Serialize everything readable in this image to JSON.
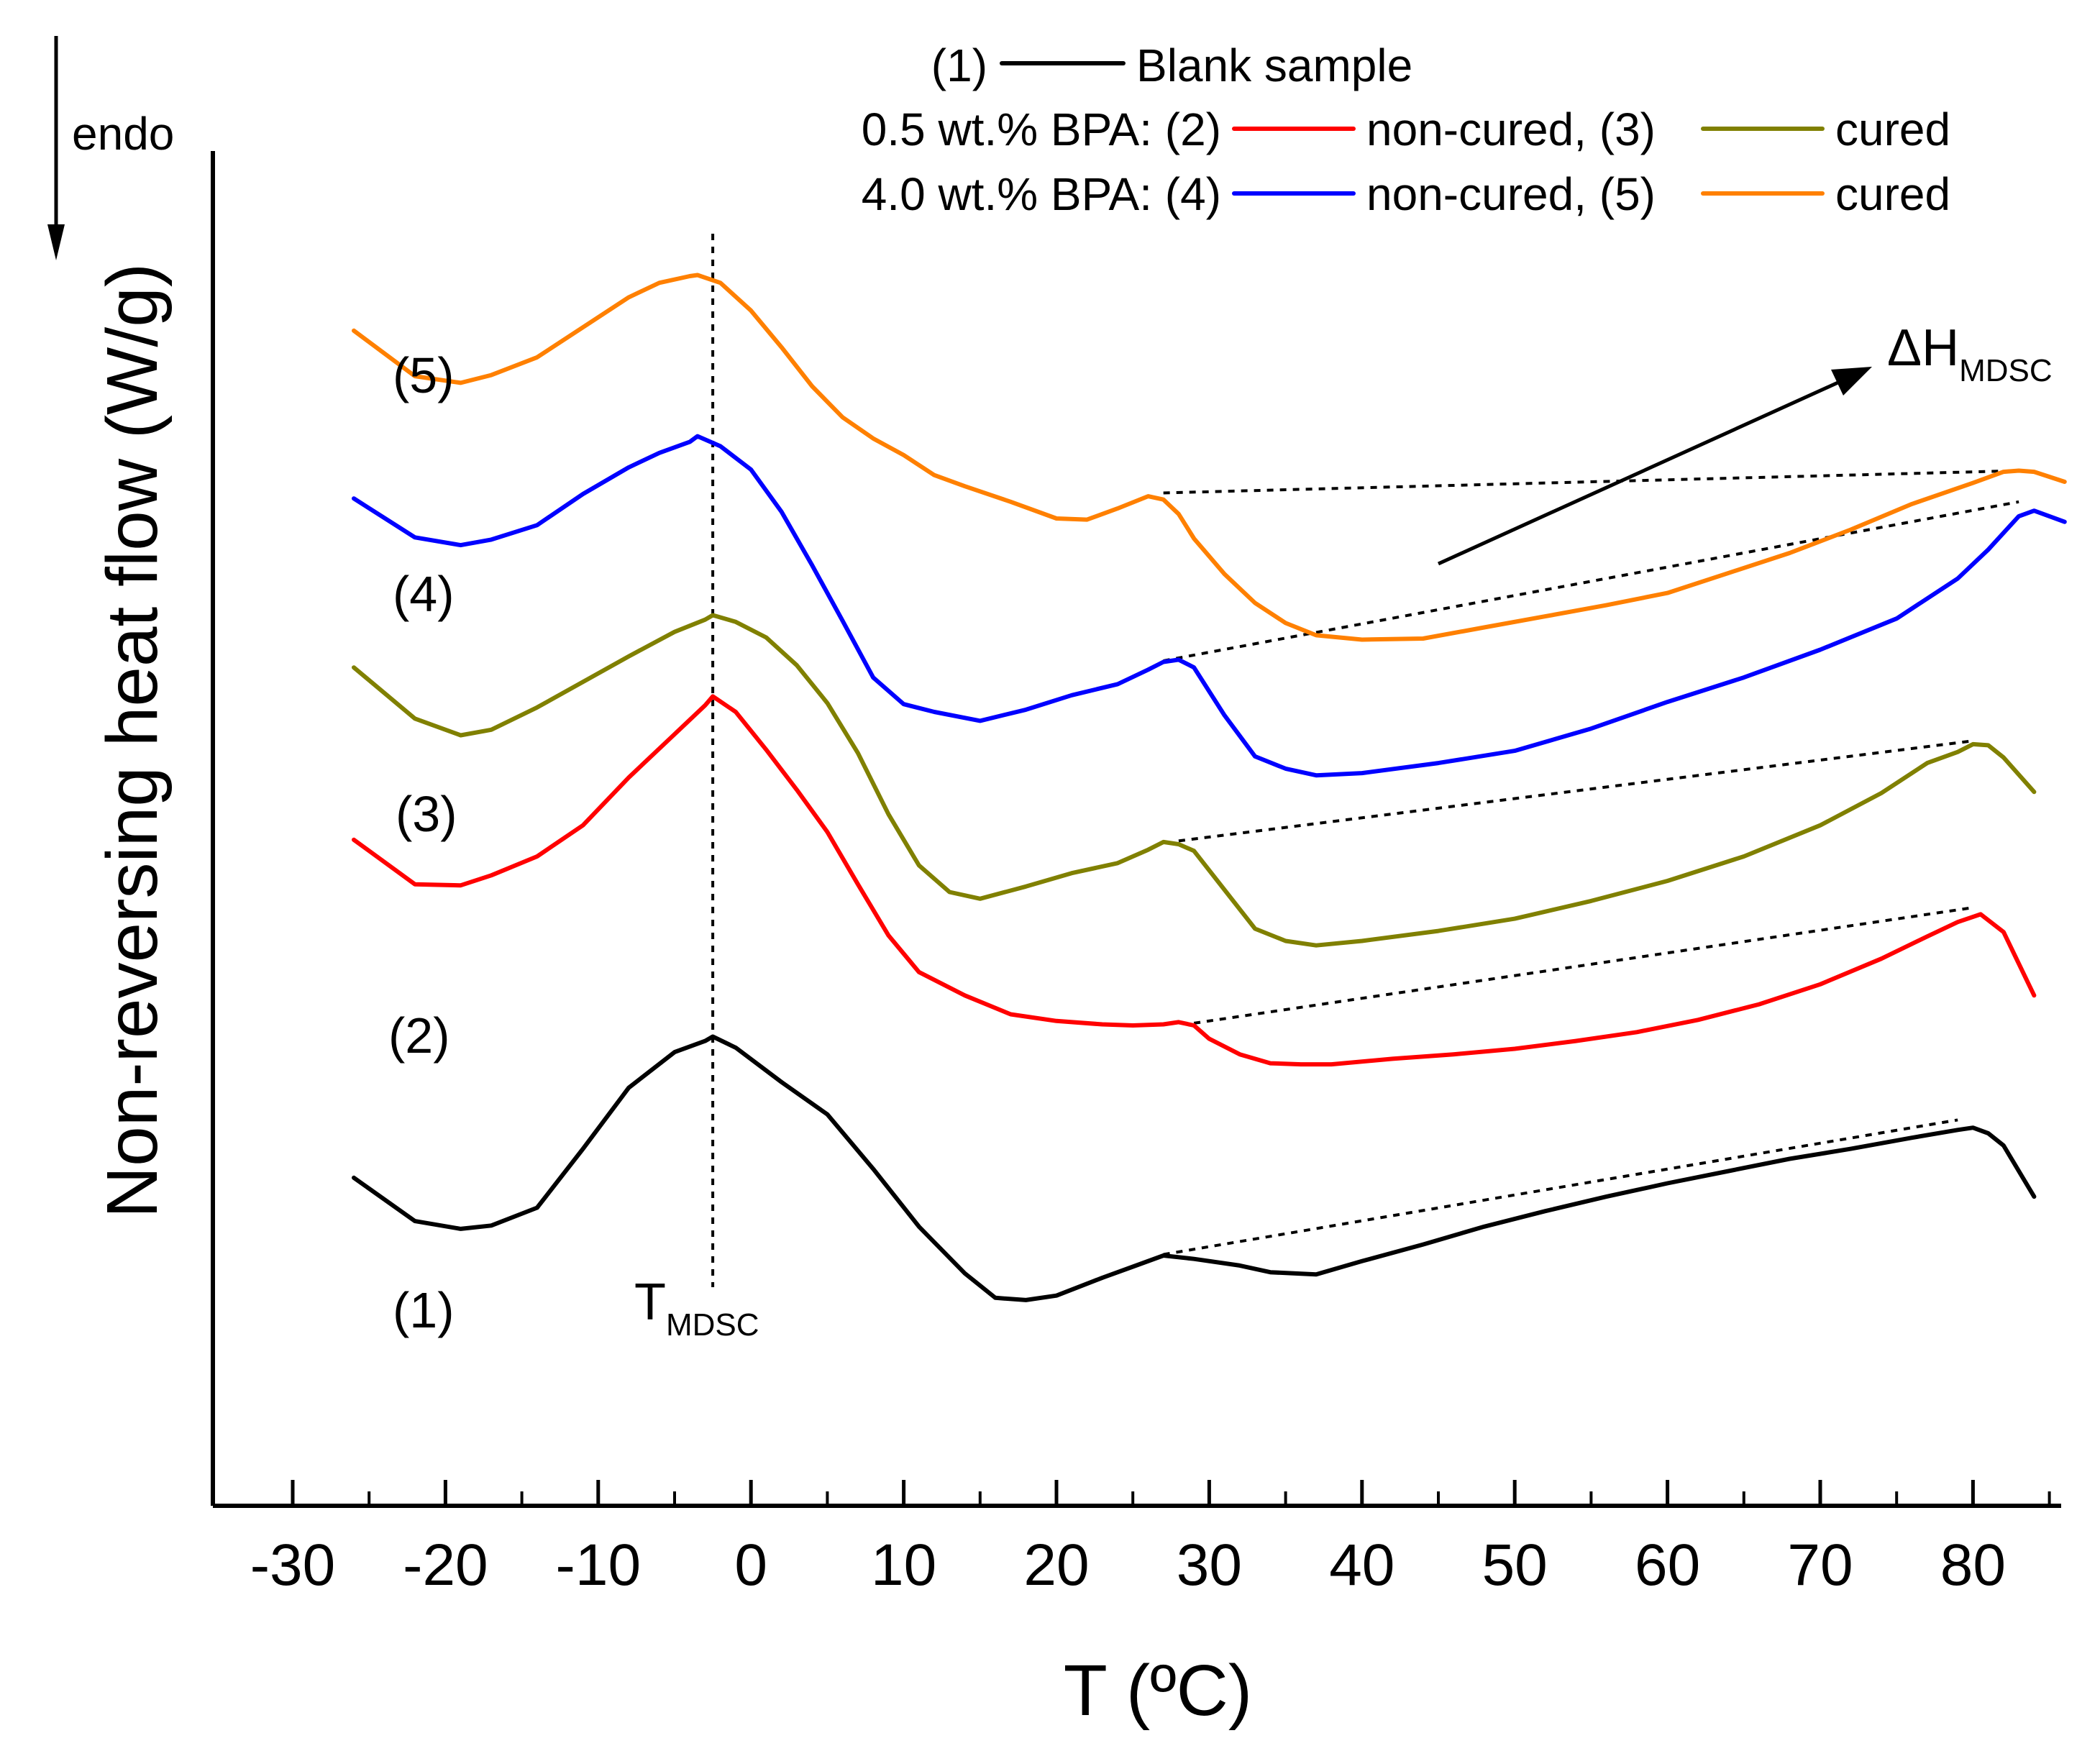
{
  "chart_data": {
    "type": "line",
    "xlabel": "T (ºC)",
    "ylabel": "Non-reversing heat flow (W/g)",
    "xlim": [
      -35,
      86
    ],
    "ylim": [
      0,
      100
    ],
    "x_ticks": [
      -30,
      -20,
      -10,
      0,
      10,
      20,
      30,
      40,
      50,
      60,
      70,
      80
    ],
    "y_ticks_shown": false,
    "endo_label": "endo",
    "legend": {
      "row1": {
        "prefix": "(1)",
        "text": "Blank sample"
      },
      "row2": {
        "prefix": "0.5 wt.% BPA: (2)",
        "mid": "non-cured, (3)",
        "suffix": "cured"
      },
      "row3": {
        "prefix": "4.0 wt.% BPA: (4)",
        "mid": "non-cured, (5)",
        "suffix": "cured"
      }
    },
    "annotations": {
      "t_mdsc": {
        "main": "T",
        "sub": "MDSC",
        "x": -2.5
      },
      "delta_h": {
        "main": "ΔH",
        "sub": "MDSC"
      }
    },
    "series": [
      {
        "id": "1",
        "label": "(1)",
        "name": "Blank sample",
        "color": "#000000",
        "x": [
          -26,
          -22,
          -19,
          -17,
          -14,
          -11,
          -8,
          -5,
          -3,
          -2.5,
          -1,
          2,
          5,
          8,
          11,
          14,
          16,
          18,
          20,
          23,
          25,
          27,
          29,
          32,
          34,
          37,
          40,
          44,
          48,
          52,
          56,
          60,
          64,
          68,
          72,
          76,
          79,
          80,
          81,
          82,
          84
        ],
        "y": [
          18.9,
          15.0,
          14.3,
          14.6,
          16.2,
          21.5,
          27.0,
          30.2,
          31.2,
          31.6,
          30.6,
          27.5,
          24.6,
          19.7,
          14.5,
          10.3,
          8.1,
          7.9,
          8.3,
          9.9,
          10.9,
          11.9,
          11.6,
          11.0,
          10.4,
          10.2,
          11.4,
          12.9,
          14.5,
          15.9,
          17.2,
          18.4,
          19.5,
          20.6,
          21.5,
          22.5,
          23.2,
          23.4,
          22.9,
          21.8,
          17.2
        ]
      },
      {
        "id": "2",
        "label": "(2)",
        "name": "0.5 wt.% BPA non-cured",
        "color": "#ff0000",
        "x": [
          -26,
          -22,
          -19,
          -17,
          -14,
          -11,
          -8,
          -5,
          -3,
          -2.5,
          -1,
          1,
          3,
          5,
          7,
          9,
          11,
          14,
          17,
          20,
          23,
          25,
          27,
          28,
          29,
          30,
          32,
          34,
          36,
          38,
          42,
          46,
          50,
          54,
          58,
          62,
          66,
          70,
          74,
          77,
          79,
          80.5,
          82,
          84
        ],
        "y": [
          49.3,
          45.3,
          45.2,
          46.1,
          47.8,
          50.6,
          54.9,
          58.8,
          61.4,
          62.2,
          60.8,
          57.4,
          53.8,
          50.0,
          45.3,
          40.7,
          37.4,
          35.3,
          33.6,
          33.0,
          32.7,
          32.6,
          32.7,
          32.9,
          32.6,
          31.4,
          30.0,
          29.2,
          29.1,
          29.1,
          29.6,
          30.0,
          30.5,
          31.2,
          32.0,
          33.1,
          34.5,
          36.3,
          38.6,
          40.6,
          41.9,
          42.6,
          41.0,
          35.3
        ]
      },
      {
        "id": "3",
        "label": "(3)",
        "name": "0.5 wt.% BPA cured",
        "color": "#808000",
        "x": [
          -26,
          -22,
          -19,
          -17,
          -14,
          -11,
          -8,
          -5,
          -3,
          -2.5,
          -1,
          1,
          3,
          5,
          7,
          9,
          11,
          13,
          15,
          18,
          21,
          24,
          26,
          27,
          28,
          29,
          31,
          33,
          35,
          37,
          40,
          45,
          50,
          55,
          60,
          65,
          70,
          74,
          77,
          79,
          80,
          81,
          82,
          84
        ],
        "y": [
          64.8,
          60.2,
          58.7,
          59.2,
          61.2,
          63.5,
          65.8,
          68.0,
          69.1,
          69.5,
          68.9,
          67.5,
          65.0,
          61.6,
          57.1,
          51.6,
          47.0,
          44.6,
          44.0,
          45.1,
          46.3,
          47.2,
          48.4,
          49.1,
          48.9,
          48.3,
          44.8,
          41.3,
          40.2,
          39.8,
          40.2,
          41.1,
          42.2,
          43.8,
          45.6,
          47.8,
          50.6,
          53.5,
          56.2,
          57.2,
          57.9,
          57.8,
          56.7,
          53.6
        ]
      },
      {
        "id": "4",
        "label": "(4)",
        "name": "4.0 wt.% BPA non-cured",
        "color": "#0000ff",
        "x": [
          -26,
          -22,
          -19,
          -17,
          -14,
          -11,
          -8,
          -6,
          -4,
          -3.5,
          -2,
          0,
          2,
          4,
          6,
          8,
          10,
          12,
          15,
          18,
          21,
          24,
          26,
          27,
          28,
          29,
          31,
          33,
          35,
          37,
          40,
          45,
          50,
          55,
          60,
          65,
          70,
          75,
          79,
          81,
          83,
          84,
          86
        ],
        "y": [
          80.0,
          76.5,
          75.8,
          76.3,
          77.6,
          80.4,
          82.8,
          84.1,
          85.1,
          85.6,
          84.7,
          82.6,
          78.8,
          74.0,
          69.0,
          63.9,
          61.5,
          60.8,
          60.0,
          61.0,
          62.3,
          63.3,
          64.6,
          65.3,
          65.5,
          64.8,
          60.5,
          56.8,
          55.7,
          55.1,
          55.3,
          56.2,
          57.3,
          59.3,
          61.7,
          63.9,
          66.4,
          69.2,
          72.8,
          75.4,
          78.4,
          78.9,
          77.9
        ]
      },
      {
        "id": "5",
        "label": "(5)",
        "name": "4.0 wt.% BPA cured",
        "color": "#ff8000",
        "x": [
          -26,
          -22,
          -19,
          -17,
          -14,
          -11,
          -8,
          -6,
          -4,
          -3.5,
          -2,
          0,
          2,
          4,
          6,
          8,
          10,
          12,
          14,
          17,
          20,
          22,
          24,
          26,
          27,
          28,
          29,
          31,
          33,
          35,
          37,
          40,
          44,
          48,
          52,
          56,
          60,
          64,
          68,
          72,
          76,
          80,
          82,
          83,
          84,
          86
        ],
        "y": [
          95.1,
          91.0,
          90.4,
          91.1,
          92.7,
          95.4,
          98.1,
          99.4,
          100.0,
          100.1,
          99.4,
          96.9,
          93.6,
          90.1,
          87.3,
          85.4,
          83.9,
          82.1,
          81.1,
          79.7,
          78.2,
          78.1,
          79.1,
          80.2,
          79.9,
          78.6,
          76.4,
          73.2,
          70.6,
          68.8,
          67.7,
          67.3,
          67.4,
          68.4,
          69.4,
          70.4,
          71.5,
          73.3,
          75.1,
          77.2,
          79.5,
          81.4,
          82.4,
          82.5,
          82.4,
          81.5
        ]
      }
    ],
    "baselines": [
      {
        "series": "1",
        "x": [
          27,
          79
        ],
        "y": [
          12.0,
          24.1
        ]
      },
      {
        "series": "2",
        "x": [
          29,
          80
        ],
        "y": [
          32.8,
          43.2
        ]
      },
      {
        "series": "3",
        "x": [
          28,
          80
        ],
        "y": [
          49.2,
          58.2
        ]
      },
      {
        "series": "4",
        "x": [
          27,
          83
        ],
        "y": [
          65.4,
          79.7
        ]
      },
      {
        "series": "5",
        "x": [
          27,
          83
        ],
        "y": [
          80.5,
          82.5
        ]
      }
    ]
  }
}
